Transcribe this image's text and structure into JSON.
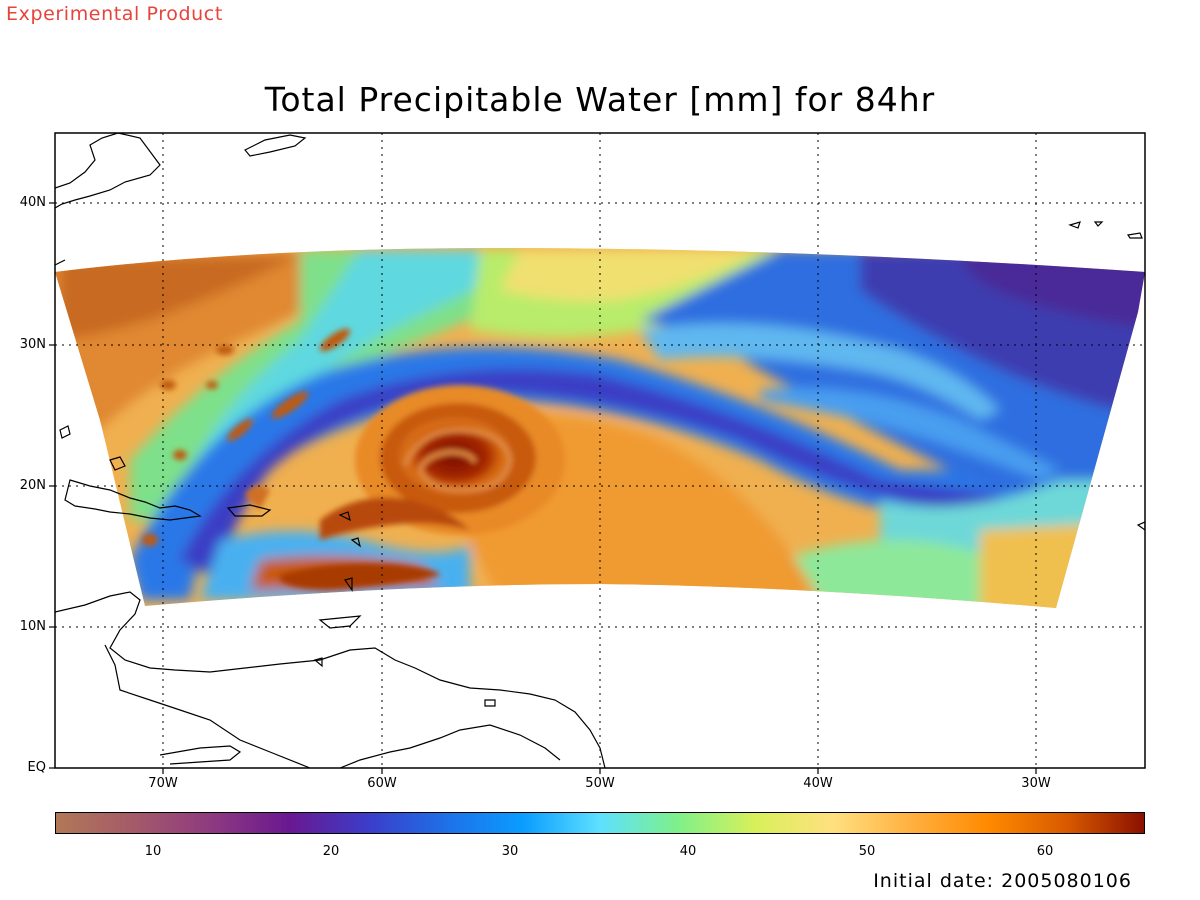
{
  "header": {
    "badge": "Experimental Product",
    "title": "Total Precipitable Water [mm] for 84hr"
  },
  "map": {
    "lat_ticks": [
      "EQ",
      "10N",
      "20N",
      "30N",
      "40N"
    ],
    "lon_ticks": [
      "70W",
      "60W",
      "50W",
      "40W",
      "30W"
    ],
    "extent": {
      "lon_min": -75,
      "lon_max": -25,
      "lat_min": 0,
      "lat_max": 45
    },
    "grid": true,
    "storm_center": {
      "lon": -56.5,
      "lat": 22
    }
  },
  "colorbar": {
    "labels": [
      "10",
      "20",
      "30",
      "40",
      "50",
      "60"
    ],
    "range": [
      5,
      65
    ],
    "colors": [
      "#b07857",
      "#a55a69",
      "#8e3a80",
      "#6a1890",
      "#3c3cc8",
      "#1f6fe6",
      "#0a9cff",
      "#5ee0ff",
      "#7ef08a",
      "#d8f05a",
      "#ffe080",
      "#ffb040",
      "#ff8a00",
      "#d85a00",
      "#8b1000"
    ]
  },
  "footer": {
    "initial_date": "Initial date: 2005080106"
  }
}
